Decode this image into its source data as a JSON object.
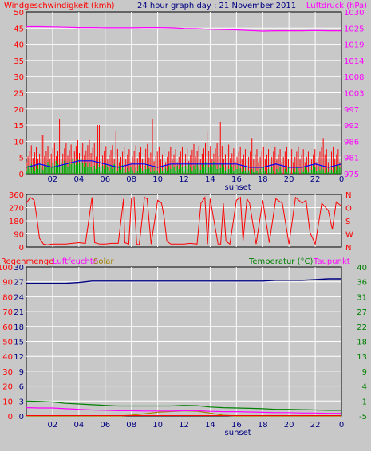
{
  "header": {
    "left_title": "Windgeschwindigkeit (kmh)",
    "center_title": "24 hour graph day : 21 November 2011",
    "right_title": "Luftdruck (hPa)"
  },
  "colors": {
    "wind": "#ff0000",
    "gust_bars": "#ff0000",
    "avg_line": "#0000ff",
    "calm_bars": "#00aa00",
    "pressure": "#ff00ff",
    "direction": "#ff0000",
    "rain": "#ff0000",
    "humidity": "#ff00ff",
    "solar": "#a08000",
    "temperature": "#008000",
    "dewpoint": "#ff00ff",
    "navy": "#000080",
    "grid": "#ffffff",
    "plot_bg": "#c8c8c8"
  },
  "x_axis": {
    "tick_labels": [
      "02",
      "04",
      "06",
      "08",
      "10",
      "12",
      "14",
      "16",
      "18",
      "20",
      "22",
      "0"
    ],
    "sunset_label": "sunset"
  },
  "chart_data": [
    {
      "type": "bar",
      "title": "24 hour graph day : 21 November 2011",
      "left_axis_label": "Windgeschwindigkeit (kmh)",
      "right_axis_label": "Luftdruck (hPa)",
      "left_ticks": [
        "0",
        "5",
        "10",
        "15",
        "20",
        "25",
        "30",
        "35",
        "40",
        "45",
        "50"
      ],
      "right_ticks": [
        "975",
        "981",
        "986",
        "992",
        "997",
        "1003",
        "1008",
        "1014",
        "1019",
        "1025",
        "1030"
      ],
      "ylim_left": [
        0,
        50
      ],
      "ylim_right": [
        975,
        1030
      ],
      "hours": [
        0,
        1,
        2,
        3,
        4,
        5,
        6,
        7,
        8,
        9,
        10,
        11,
        12,
        13,
        14,
        15,
        16,
        17,
        18,
        19,
        20,
        21,
        22,
        23,
        24
      ],
      "gust_base": [
        6,
        7,
        7,
        7,
        8,
        8,
        7,
        6,
        6,
        7,
        6,
        6,
        6,
        7,
        7,
        7,
        6,
        6,
        6,
        6,
        6,
        6,
        6,
        6,
        6
      ],
      "gust_peaks": [
        [
          2.5,
          17
        ],
        [
          5.5,
          15
        ],
        [
          9.6,
          17
        ],
        [
          14.8,
          16
        ],
        [
          13.8,
          13
        ],
        [
          17.2,
          11
        ],
        [
          22.6,
          11
        ],
        [
          1.2,
          12
        ],
        [
          6.8,
          13
        ]
      ],
      "avg_wind": [
        2,
        3,
        2,
        3,
        4,
        4,
        3,
        2,
        3,
        3,
        2,
        3,
        3,
        3,
        3,
        3,
        3,
        2,
        2,
        3,
        2,
        2,
        3,
        2,
        3
      ],
      "calm_bars": [
        2,
        2,
        3,
        3,
        4,
        2,
        2,
        2,
        1,
        2,
        1,
        2,
        2,
        2,
        3,
        2,
        2,
        1,
        1,
        1,
        1,
        1,
        2,
        1,
        2
      ],
      "pressure": [
        1025,
        1025,
        1024.9,
        1024.8,
        1024.7,
        1024.7,
        1024.6,
        1024.6,
        1024.6,
        1024.7,
        1024.7,
        1024.6,
        1024.4,
        1024.3,
        1024.1,
        1024,
        1023.9,
        1023.7,
        1023.5,
        1023.6,
        1023.6,
        1023.6,
        1023.7,
        1023.6,
        1023.6
      ]
    },
    {
      "type": "line",
      "left_ticks": [
        "0",
        "90",
        "180",
        "270",
        "360"
      ],
      "right_ticks": [
        "N",
        "W",
        "S",
        "O",
        "N"
      ],
      "ylim": [
        0,
        360
      ],
      "hours": [
        0,
        0.3,
        0.6,
        0.8,
        1,
        1.3,
        1.6,
        2,
        3,
        4,
        4.5,
        5,
        5.2,
        5.6,
        6,
        6.5,
        7,
        7.4,
        7.5,
        7.8,
        8,
        8.2,
        8.4,
        8.6,
        9,
        9.2,
        9.5,
        10,
        10.3,
        10.5,
        10.7,
        11,
        12,
        12.5,
        13,
        13.3,
        13.6,
        13.8,
        14,
        14.6,
        14.8,
        15,
        15.2,
        15.5,
        16,
        16.3,
        16.5,
        16.8,
        17,
        17.5,
        18,
        18.5,
        19,
        19.5,
        20,
        20.5,
        21,
        21.3,
        21.6,
        22,
        22.5,
        23,
        23.3,
        23.6,
        24
      ],
      "direction_deg": [
        300,
        340,
        320,
        200,
        60,
        20,
        15,
        20,
        20,
        30,
        25,
        340,
        30,
        20,
        20,
        25,
        25,
        330,
        30,
        20,
        330,
        340,
        20,
        15,
        340,
        330,
        20,
        320,
        300,
        200,
        40,
        20,
        20,
        25,
        20,
        300,
        340,
        20,
        330,
        20,
        20,
        300,
        40,
        20,
        320,
        340,
        40,
        330,
        300,
        20,
        320,
        30,
        330,
        300,
        20,
        340,
        300,
        320,
        100,
        20,
        300,
        250,
        120,
        310,
        280
      ]
    },
    {
      "type": "line",
      "legend": [
        "Regenmenge",
        "Luftfeuchte",
        "Solar",
        "Temperatur (°C)",
        "Taupunkt"
      ],
      "left_ticks": [
        "0",
        "10",
        "20",
        "30",
        "40",
        "50",
        "60",
        "70",
        "80",
        "90",
        "100"
      ],
      "left_ticks_2": [
        "0",
        "3",
        "6",
        "9",
        "12",
        "15",
        "18",
        "21",
        "24",
        "27",
        "30"
      ],
      "right_ticks": [
        "-5",
        "-1",
        "4",
        "9",
        "13",
        "18",
        "22",
        "27",
        "31",
        "36",
        "40"
      ],
      "ylim_left": [
        0,
        100
      ],
      "ylim_right": [
        -5,
        40
      ],
      "hours": [
        0,
        1,
        2,
        3,
        4,
        5,
        6,
        7,
        8,
        9,
        10,
        11,
        12,
        13,
        14,
        15,
        16,
        17,
        18,
        19,
        20,
        21,
        22,
        23,
        24
      ],
      "humidity": [
        89,
        89,
        89,
        89,
        89.5,
        90.5,
        90.5,
        90.5,
        90.5,
        90.5,
        90.5,
        90.5,
        90.5,
        90.5,
        90.5,
        90.5,
        90.5,
        90.5,
        90.5,
        91,
        91,
        91,
        91.5,
        92,
        92
      ],
      "temperature": [
        -0.5,
        -0.6,
        -0.8,
        -1.2,
        -1.4,
        -1.6,
        -1.8,
        -2.0,
        -2.0,
        -2.0,
        -2.0,
        -2.0,
        -1.8,
        -1.9,
        -2.3,
        -2.5,
        -2.6,
        -2.7,
        -2.8,
        -3.0,
        -3.0,
        -3.1,
        -3.2,
        -3.3,
        -3.3
      ],
      "dewpoint": [
        -2.5,
        -2.6,
        -2.6,
        -2.8,
        -3.0,
        -3.2,
        -3.3,
        -3.4,
        -3.4,
        -3.5,
        -3.5,
        -3.5,
        -3.4,
        -3.4,
        -3.6,
        -3.7,
        -3.7,
        -3.8,
        -3.9,
        -4.0,
        -4.0,
        -4.1,
        -4.1,
        -4.2,
        -4.2
      ],
      "solar": [
        0,
        0,
        0,
        0,
        0,
        0,
        0,
        0,
        0.5,
        1.5,
        2.5,
        3,
        3.5,
        3.2,
        2,
        0.5,
        0,
        0,
        0,
        0,
        0,
        0,
        0,
        0,
        0
      ],
      "rain": [
        0,
        0,
        0,
        0,
        0,
        0,
        0,
        0,
        0,
        0,
        0,
        0,
        0,
        0,
        0,
        0,
        0,
        0,
        0,
        0,
        0,
        0,
        0,
        0,
        0
      ]
    }
  ]
}
